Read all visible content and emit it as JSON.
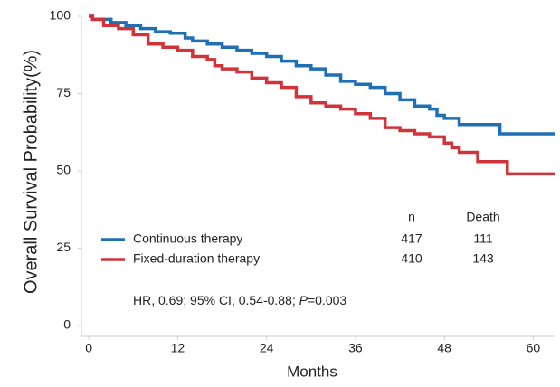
{
  "chart_data": {
    "type": "step",
    "xlabel": "Months",
    "ylabel": "Overall Survival Probability(%)",
    "xlim": [
      -1,
      63
    ],
    "ylim": [
      -3.5,
      100
    ],
    "xticks": [
      0,
      12,
      24,
      36,
      48,
      60
    ],
    "yticks": [
      0,
      25,
      50,
      75,
      100
    ],
    "series": [
      {
        "name": "Continuous therapy",
        "color": "#1f6fb5",
        "x": [
          0,
          0.5,
          3,
          5,
          7,
          9,
          11,
          13,
          14,
          16,
          18,
          20,
          22,
          24,
          26,
          28,
          30,
          32,
          34,
          36,
          38,
          40,
          42,
          44,
          46,
          47,
          48,
          50,
          55.5,
          63
        ],
        "values": [
          100,
          99,
          98,
          97,
          96,
          95,
          94.5,
          93,
          92,
          91,
          90,
          89,
          88,
          87,
          85.5,
          84,
          83,
          81,
          79,
          78,
          77,
          75,
          73,
          71,
          70,
          68,
          67,
          65,
          62,
          62
        ]
      },
      {
        "name": "Fixed-duration therapy",
        "color": "#d0343a",
        "x": [
          0,
          0.5,
          2,
          4,
          6,
          8,
          10,
          12,
          14,
          16,
          17,
          18,
          20,
          22,
          24,
          26,
          28,
          30,
          32,
          34,
          36,
          38,
          40,
          42,
          44,
          46,
          48,
          49,
          50,
          52.5,
          56.5,
          63
        ],
        "values": [
          100,
          99,
          97,
          96,
          94,
          91,
          90,
          89,
          87,
          86,
          84,
          83,
          82,
          80,
          78.5,
          77,
          74,
          72,
          71,
          70,
          68.5,
          67,
          64,
          63,
          62,
          61,
          59,
          57.5,
          56,
          53,
          49,
          49
        ]
      }
    ],
    "risk_table": {
      "headers": [
        "n",
        "Death"
      ],
      "rows": [
        [
          417,
          111
        ],
        [
          410,
          143
        ]
      ]
    },
    "annotation": [
      "HR, 0.69; 95% CI, 0.54-0.88; ",
      "P",
      "=0.003"
    ]
  }
}
